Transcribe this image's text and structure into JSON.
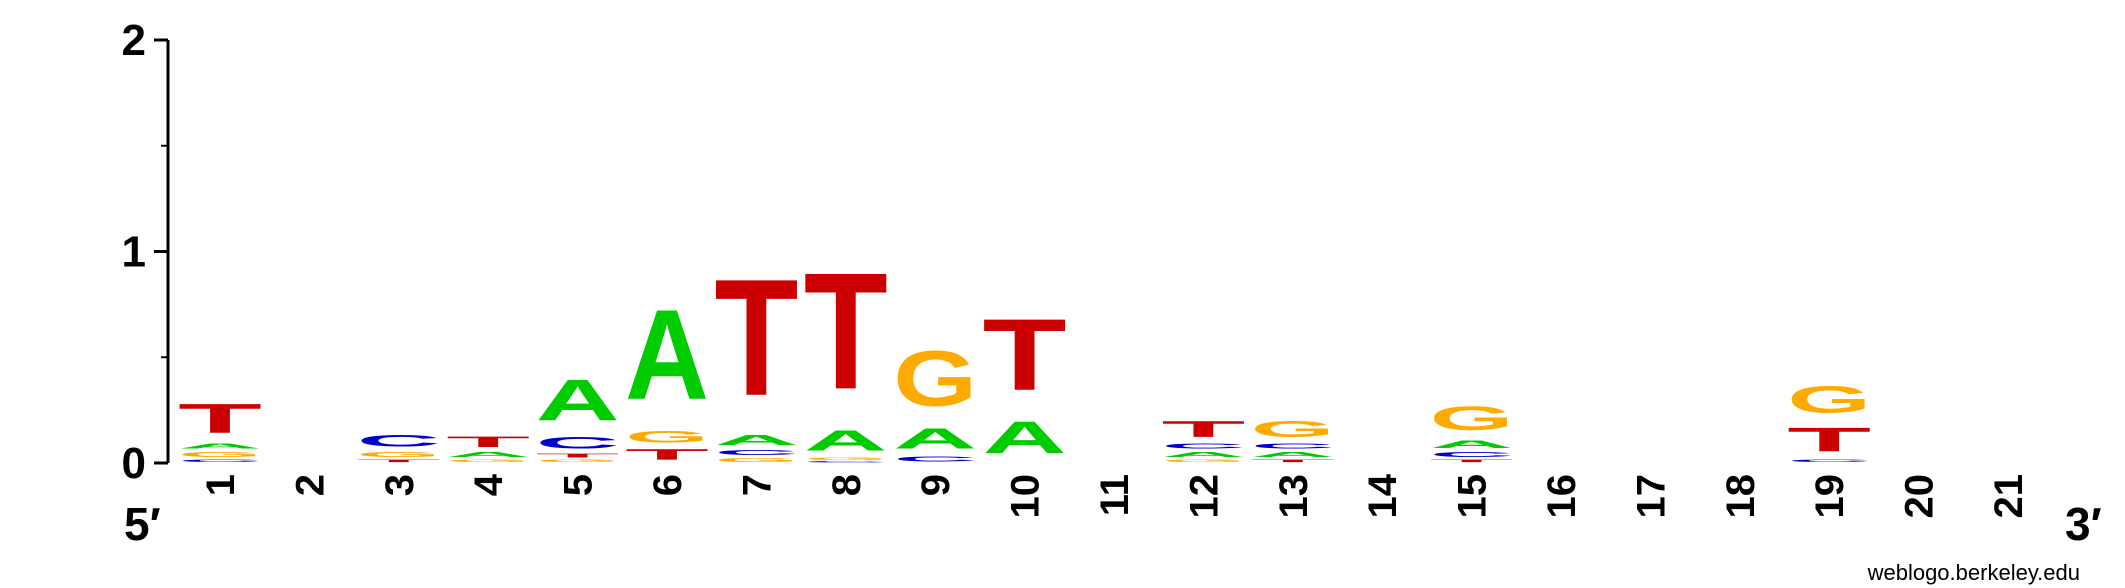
{
  "chart_data": {
    "type": "sequence-logo",
    "y_axis": {
      "ticks": [
        "0",
        "1",
        "2"
      ],
      "range": [
        0,
        2
      ]
    },
    "x_axis": {
      "start_label": "5′",
      "end_label": "3′",
      "positions": [
        "1",
        "2",
        "3",
        "4",
        "5",
        "6",
        "7",
        "8",
        "9",
        "10",
        "11",
        "12",
        "13",
        "14",
        "15",
        "16",
        "17",
        "18",
        "19",
        "20",
        "21"
      ]
    },
    "colors": {
      "A": "#00cc00",
      "C": "#0000cc",
      "G": "#ffaa00",
      "T": "#cc0000"
    },
    "columns": [
      {
        "position": "1",
        "stack": [
          {
            "letter": "C",
            "bits": 0.02
          },
          {
            "letter": "G",
            "bits": 0.04
          },
          {
            "letter": "A",
            "bits": 0.04
          },
          {
            "letter": "T",
            "bits": 0.22
          }
        ]
      },
      {
        "position": "2",
        "stack": []
      },
      {
        "position": "3",
        "stack": [
          {
            "letter": "T",
            "bits": 0.02
          },
          {
            "letter": "G",
            "bits": 0.04
          },
          {
            "letter": "C",
            "bits": 0.09
          }
        ]
      },
      {
        "position": "4",
        "stack": [
          {
            "letter": "G",
            "bits": 0.02
          },
          {
            "letter": "A",
            "bits": 0.04
          },
          {
            "letter": "T",
            "bits": 0.08
          }
        ]
      },
      {
        "position": "5",
        "stack": [
          {
            "letter": "G",
            "bits": 0.02
          },
          {
            "letter": "T",
            "bits": 0.03
          },
          {
            "letter": "C",
            "bits": 0.09
          },
          {
            "letter": "A",
            "bits": 0.31
          }
        ]
      },
      {
        "position": "6",
        "stack": [
          {
            "letter": "T",
            "bits": 0.08
          },
          {
            "letter": "G",
            "bits": 0.09
          },
          {
            "letter": "A",
            "bits": 0.68
          }
        ]
      },
      {
        "position": "7",
        "stack": [
          {
            "letter": "G",
            "bits": 0.03
          },
          {
            "letter": "C",
            "bits": 0.04
          },
          {
            "letter": "A",
            "bits": 0.08
          },
          {
            "letter": "T",
            "bits": 0.88
          }
        ]
      },
      {
        "position": "8",
        "stack": [
          {
            "letter": "C",
            "bits": 0.01
          },
          {
            "letter": "G",
            "bits": 0.02
          },
          {
            "letter": "A",
            "bits": 0.15
          },
          {
            "letter": "T",
            "bits": 0.88
          }
        ]
      },
      {
        "position": "9",
        "stack": [
          {
            "letter": "C",
            "bits": 0.04
          },
          {
            "letter": "A",
            "bits": 0.15
          },
          {
            "letter": "G",
            "bits": 0.42
          }
        ]
      },
      {
        "position": "10",
        "stack": [
          {
            "letter": "A",
            "bits": 0.24
          },
          {
            "letter": "T",
            "bits": 0.54
          }
        ]
      },
      {
        "position": "11",
        "stack": []
      },
      {
        "position": "12",
        "stack": [
          {
            "letter": "G",
            "bits": 0.02
          },
          {
            "letter": "A",
            "bits": 0.04
          },
          {
            "letter": "C",
            "bits": 0.04
          },
          {
            "letter": "T",
            "bits": 0.12
          }
        ]
      },
      {
        "position": "13",
        "stack": [
          {
            "letter": "T",
            "bits": 0.02
          },
          {
            "letter": "A",
            "bits": 0.04
          },
          {
            "letter": "C",
            "bits": 0.04
          },
          {
            "letter": "G",
            "bits": 0.12
          }
        ]
      },
      {
        "position": "14",
        "stack": []
      },
      {
        "position": "15",
        "stack": [
          {
            "letter": "T",
            "bits": 0.02
          },
          {
            "letter": "C",
            "bits": 0.04
          },
          {
            "letter": "A",
            "bits": 0.06
          },
          {
            "letter": "G",
            "bits": 0.18
          }
        ]
      },
      {
        "position": "16",
        "stack": []
      },
      {
        "position": "17",
        "stack": []
      },
      {
        "position": "18",
        "stack": []
      },
      {
        "position": "19",
        "stack": [
          {
            "letter": "C",
            "bits": 0.02
          },
          {
            "letter": "T",
            "bits": 0.18
          },
          {
            "letter": "G",
            "bits": 0.2
          }
        ]
      },
      {
        "position": "20",
        "stack": []
      },
      {
        "position": "21",
        "stack": []
      }
    ]
  },
  "credit": "weblogo.berkeley.edu"
}
